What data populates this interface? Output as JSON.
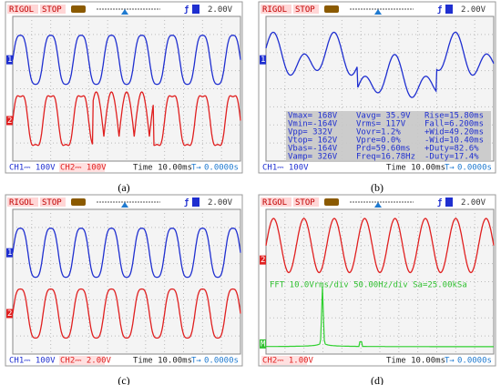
{
  "panels": [
    {
      "caption": "(a)",
      "header": {
        "brand": "RIGOL",
        "status": "STOP",
        "trigger": "2.00V"
      },
      "markers": [
        "1",
        "2"
      ],
      "footer": {
        "ch1": "CH1⎓ 100V",
        "ch2": "CH2⎓ 100V",
        "time": "Time 10.00ms",
        "offset": "0.0000s"
      }
    },
    {
      "caption": "(b)",
      "header": {
        "brand": "RIGOL",
        "status": "STOP",
        "trigger": "2.00V"
      },
      "markers": [
        "1"
      ],
      "measurements": [
        [
          "Vmax= 168V",
          "Vavg= 35.9V",
          "Rise=15.80ms"
        ],
        [
          "Vmin=-164V",
          "Vrms= 117V",
          "Fall=6.200ms"
        ],
        [
          "Vpp= 332V",
          "Vovr=1.2%",
          "+Wid=49.20ms"
        ],
        [
          "Vtop= 162V",
          "Vpre=0.0%",
          "-Wid=10.40ms"
        ],
        [
          "Vbas=-164V",
          "Prd=59.60ms",
          "+Duty=82.6%"
        ],
        [
          "Vamp= 326V",
          "Freq=16.78Hz",
          "-Duty=17.4%"
        ]
      ],
      "footer": {
        "ch1": "CH1⎓ 100V",
        "time": "Time 10.00ms",
        "offset": "0.0000s"
      }
    },
    {
      "caption": "(c)",
      "header": {
        "brand": "RIGOL",
        "status": "STOP",
        "trigger": "2.00V"
      },
      "markers": [
        "1",
        "2"
      ],
      "footer": {
        "ch1": "CH1⎓ 100V",
        "ch2": "CH2⎓ 2.00V",
        "time": "Time 10.00ms",
        "offset": "0.0000s"
      }
    },
    {
      "caption": "(d)",
      "header": {
        "brand": "RIGOL",
        "status": "STOP",
        "trigger": "2.00V"
      },
      "markers": [
        "2",
        "M"
      ],
      "fft": "FFT  10.0Vrms/div 50.00Hz/div Sa=25.00kSa",
      "footer": {
        "ch2": "CH2⎓ 1.00V",
        "time": "Time 10.00ms",
        "offset": "0.0000s"
      }
    }
  ]
}
